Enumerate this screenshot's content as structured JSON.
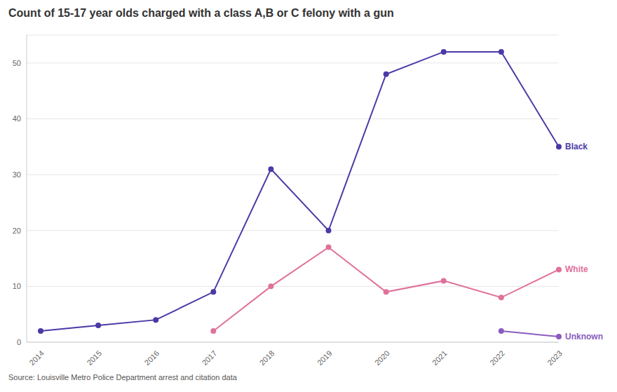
{
  "chart_data": {
    "type": "line",
    "title": "Count of 15-17 year olds charged with a class A,B or C felony with a gun",
    "source": "Source: Louisville Metro Police Department arrest and citation data",
    "categories": [
      "2014",
      "2015",
      "2016",
      "2017",
      "2018",
      "2019",
      "2020",
      "2021",
      "2022",
      "2023"
    ],
    "series": [
      {
        "name": "Black",
        "color": "#4a3aa6",
        "marker": "circle",
        "values": [
          2,
          3,
          4,
          9,
          31,
          20,
          48,
          52,
          52,
          35
        ]
      },
      {
        "name": "White",
        "color": "#e0719b",
        "marker": "circle",
        "values": [
          null,
          null,
          null,
          2,
          10,
          17,
          9,
          11,
          8,
          13
        ]
      },
      {
        "name": "Unknown",
        "color": "#8a5cc0",
        "marker": "circle",
        "values": [
          null,
          null,
          null,
          null,
          null,
          null,
          null,
          null,
          2,
          1
        ]
      }
    ],
    "ylim": [
      0,
      55
    ],
    "yticks": [
      0,
      10,
      20,
      30,
      40,
      50
    ],
    "grid": true
  }
}
